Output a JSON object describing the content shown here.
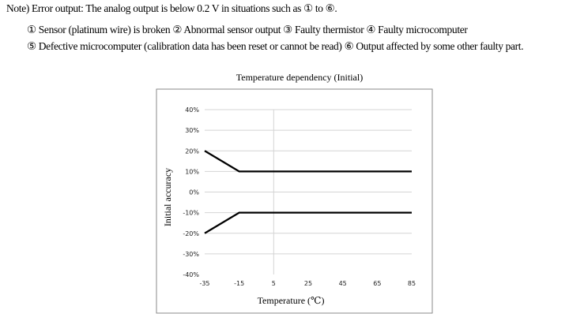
{
  "note": {
    "title": "Note) Error output: The analog output is below 0.2 V in situations such as ① to ⑥.",
    "line1": "① Sensor (platinum wire) is broken   ② Abnormal sensor output   ③ Faulty thermistor   ④ Faulty microcomputer",
    "line2": "⑤ Defective microcomputer (calibration data has been reset or cannot be read)   ⑥ Output affected by some other faulty part."
  },
  "chart_data": {
    "type": "line",
    "title": "Temperature dependency (Initial)",
    "xlabel": "Temperature (℃)",
    "ylabel": "Initial accuracy",
    "x_ticks": [
      "-35",
      "-15",
      "5",
      "25",
      "45",
      "65",
      "85"
    ],
    "y_ticks": [
      "40%",
      "30%",
      "20%",
      "10%",
      "0%",
      "-10%",
      "-20%",
      "-30%",
      "-40%"
    ],
    "xlim": [
      -35,
      85
    ],
    "ylim": [
      -40,
      40
    ],
    "grid": "horizontal lines at each tick, one vertical line at 5",
    "series": [
      {
        "x": [
          -35,
          -15,
          85
        ],
        "y": [
          20,
          10,
          10
        ]
      },
      {
        "x": [
          -35,
          -15,
          85
        ],
        "y": [
          -20,
          -10,
          -10
        ]
      }
    ]
  }
}
